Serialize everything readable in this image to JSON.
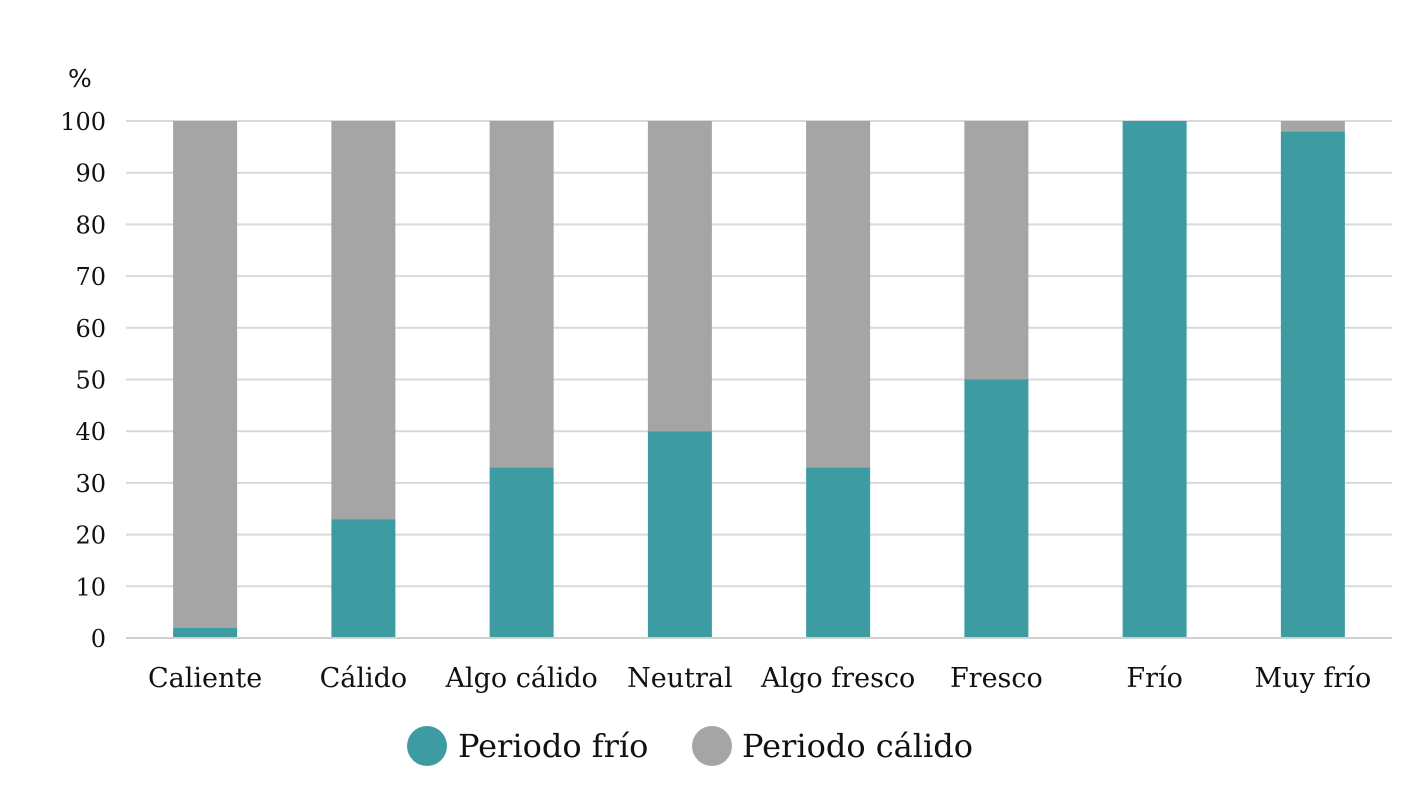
{
  "chart_data": {
    "type": "bar",
    "stacked": true,
    "title": "",
    "xlabel": "",
    "ylabel": "%",
    "ylim": [
      0,
      100
    ],
    "yticks": [
      0,
      10,
      20,
      30,
      40,
      50,
      60,
      70,
      80,
      90,
      100
    ],
    "grid": true,
    "legend_position": "bottom",
    "categories": [
      "Caliente",
      "Cálido",
      "Algo cálido",
      "Neutral",
      "Algo fresco",
      "Fresco",
      "Frío",
      "Muy frío"
    ],
    "series": [
      {
        "name": "Periodo frío",
        "color": "#3d9ca1",
        "values": [
          2,
          23,
          33,
          40,
          33,
          50,
          100,
          98
        ]
      },
      {
        "name": "Periodo cálido",
        "color": "#a5a5a5",
        "values": [
          98,
          77,
          67,
          60,
          67,
          50,
          0,
          2
        ]
      }
    ]
  }
}
